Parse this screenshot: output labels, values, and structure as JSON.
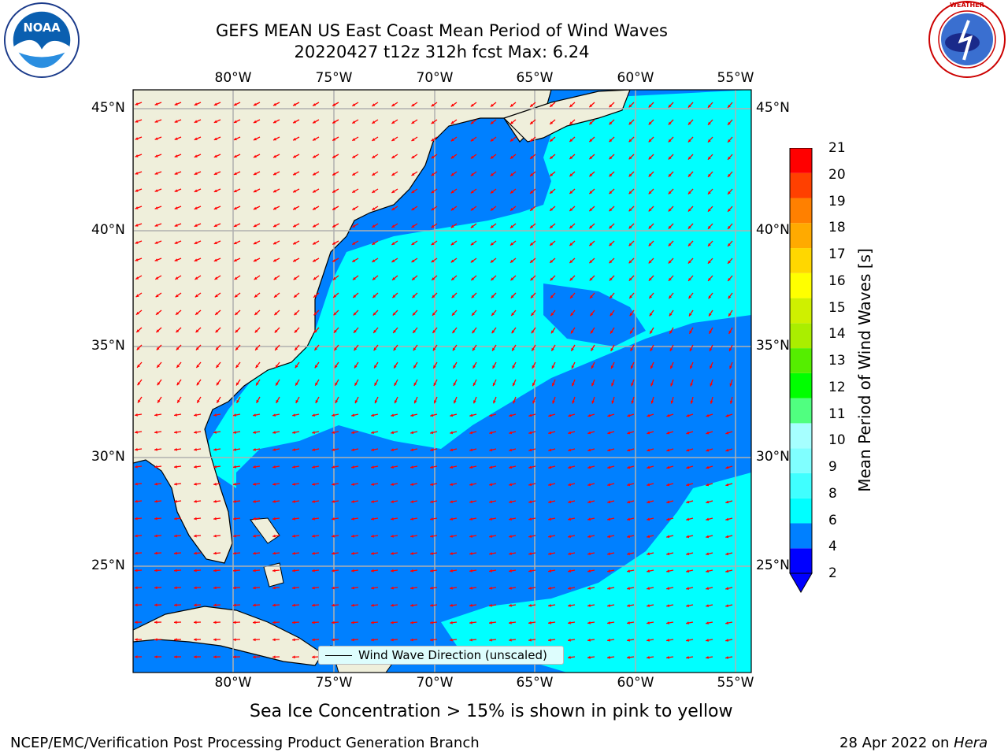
{
  "title_line1": "GEFS MEAN US East Coast Mean Period of Wind Waves",
  "title_line2": "20220427 t12z 312h fcst   Max: 6.24",
  "logos": {
    "left": {
      "icon": "noaa-logo",
      "text": "NOAA",
      "ring_text": "NATIONAL OCEANIC AND ATMOSPHERIC ADMINISTRATION · U.S. DEPARTMENT OF COMMERCE"
    },
    "right": {
      "icon": "nws-logo",
      "ring_text": "NATIONAL WEATHER SERVICE"
    }
  },
  "map": {
    "lon_labels": [
      "80°W",
      "75°W",
      "70°W",
      "65°W",
      "60°W",
      "55°W"
    ],
    "lat_labels": [
      "45°N",
      "40°N",
      "35°N",
      "30°N",
      "25°N"
    ],
    "arrow_color": "#ff0000",
    "land_color": "#efefdb",
    "region": "US East Coast / Western North Atlantic",
    "legend_label": "Wind Wave Direction (unscaled)"
  },
  "colorbar": {
    "label": "Mean Period of Wind Waves [s]",
    "ticks": [
      "21",
      "20",
      "19",
      "18",
      "17",
      "16",
      "15",
      "14",
      "13",
      "12",
      "11",
      "10",
      "9",
      "8",
      "6",
      "4",
      "2"
    ],
    "colors": [
      "#0000ff",
      "#0080ff",
      "#00ffff",
      "#40ffff",
      "#80ffff",
      "#a6ffff",
      "#50ff80",
      "#00ff00",
      "#55ee00",
      "#aaee00",
      "#cff000",
      "#ffff00",
      "#ffd700",
      "#ffaa00",
      "#ff8000",
      "#ff4000",
      "#ff0000"
    ],
    "extend": "min"
  },
  "note": "Sea Ice Concentration > 15% is shown in pink to yellow",
  "footer_left": "NCEP/EMC/Verification Post Processing Product Generation Branch",
  "footer_right_prefix": "28 Apr 2022 on ",
  "footer_right_host": "Hera"
}
